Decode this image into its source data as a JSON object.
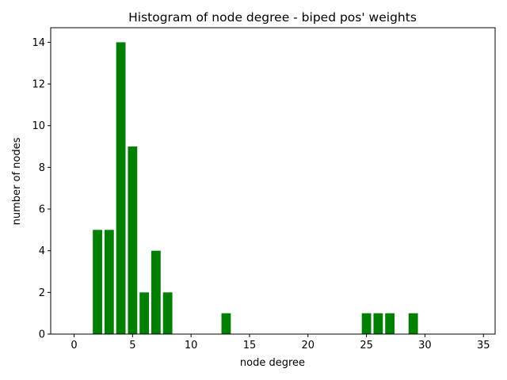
{
  "chart_data": {
    "type": "bar",
    "title": "Histogram of node degree - biped pos' weights",
    "xlabel": "node degree",
    "ylabel": "number of nodes",
    "x": [
      2,
      3,
      4,
      5,
      6,
      7,
      8,
      13,
      25,
      26,
      27,
      29
    ],
    "values": [
      5,
      5,
      14,
      9,
      2,
      4,
      2,
      1,
      1,
      1,
      1,
      1
    ],
    "xlim": [
      -2,
      36
    ],
    "ylim": [
      0,
      14.7
    ],
    "xticks": [
      0,
      5,
      10,
      15,
      20,
      25,
      30,
      35
    ],
    "yticks": [
      0,
      2,
      4,
      6,
      8,
      10,
      12,
      14
    ],
    "bar_color": "#008000",
    "grid": false
  }
}
